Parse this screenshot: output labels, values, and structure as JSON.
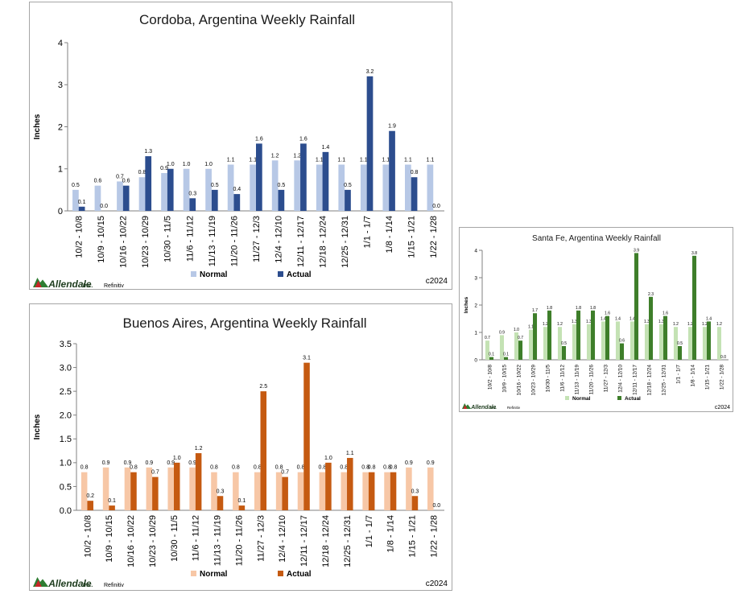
{
  "charts_meta": {
    "brand_name": "Allendale",
    "brand_suffix": "Inc.",
    "source": "Refinitiv",
    "copyright": "c2024"
  },
  "chart_data": [
    {
      "type": "bar",
      "title": "Cordoba, Argentina Weekly Rainfall",
      "xlabel": "",
      "ylabel": "Inches",
      "ylim": [
        0,
        4
      ],
      "yticks": [
        "0",
        "1",
        "2",
        "3",
        "4"
      ],
      "ytick_values": [
        0,
        1,
        2,
        3,
        4
      ],
      "grid": false,
      "legend": "bottom-center",
      "categories": [
        "10/2 - 10/8",
        "10/9 - 10/15",
        "10/16 - 10/22",
        "10/23 - 10/29",
        "10/30 - 11/5",
        "11/6 - 11/12",
        "11/13 - 11/19",
        "11/20 - 11/26",
        "11/27 - 12/3",
        "12/4 - 12/10",
        "12/11 - 12/17",
        "12/18 - 12/24",
        "12/25 - 12/31",
        "1/1 - 1/7",
        "1/8 - 1/14",
        "1/15 - 1/21",
        "1/22 - 1/28"
      ],
      "series": [
        {
          "name": "Normal",
          "color": "#b7c8e6",
          "values": [
            0.5,
            0.6,
            0.7,
            0.8,
            0.9,
            1.0,
            1.0,
            1.1,
            1.1,
            1.2,
            1.2,
            1.1,
            1.1,
            1.1,
            1.1,
            1.1,
            1.1
          ],
          "labels": [
            "0.5",
            "0.6",
            "0.7",
            "0.8",
            "0.9",
            "1.0",
            "1.0",
            "1.1",
            "1.1",
            "1.2",
            "1.2",
            "1.1",
            "1.1",
            "1.1",
            "1.1",
            "1.1",
            "1.1"
          ]
        },
        {
          "name": "Actual",
          "color": "#2c4d8e",
          "values": [
            0.1,
            0.0,
            0.6,
            1.3,
            1.0,
            0.3,
            0.5,
            0.4,
            1.6,
            0.5,
            1.6,
            1.4,
            0.5,
            3.2,
            1.9,
            0.8,
            0.0
          ],
          "labels": [
            "0.1",
            "0.0",
            "0.6",
            "1.3",
            "1.0",
            "0.3",
            "0.5",
            "0.4",
            "1.6",
            "0.5",
            "1.6",
            "1.4",
            "0.5",
            "3.2",
            "1.9",
            "0.8",
            "0.0"
          ]
        }
      ]
    },
    {
      "type": "bar",
      "title": "Santa Fe, Argentina Weekly Rainfall",
      "xlabel": "",
      "ylabel": "Inches",
      "ylim": [
        0,
        4
      ],
      "yticks": [
        "0",
        "1",
        "2",
        "3",
        "4"
      ],
      "ytick_values": [
        0,
        1,
        2,
        3,
        4
      ],
      "grid": false,
      "legend": "bottom-center",
      "categories": [
        "10/2 - 10/8",
        "10/9 - 10/15",
        "10/16 - 10/22",
        "10/23 - 10/29",
        "10/30 - 11/5",
        "11/6 - 11/12",
        "11/13 - 11/19",
        "11/20 - 11/26",
        "11/27 - 12/3",
        "12/4 - 12/10",
        "12/11 - 12/17",
        "12/18 - 12/24",
        "12/25 - 12/31",
        "1/1 - 1/7",
        "1/8 - 1/14",
        "1/15 - 1/21",
        "1/22 - 1/28"
      ],
      "series": [
        {
          "name": "Normal",
          "color": "#c4e2b4",
          "values": [
            0.7,
            0.9,
            1.0,
            1.1,
            1.2,
            1.2,
            1.3,
            1.3,
            1.4,
            1.4,
            1.4,
            1.3,
            1.3,
            1.2,
            1.2,
            1.2,
            1.2
          ],
          "labels": [
            "0.7",
            "0.9",
            "1.0",
            "1.1",
            "1.2",
            "1.2",
            "1.3",
            "1.3",
            "1.4",
            "1.4",
            "1.4",
            "1.3",
            "1.3",
            "1.2",
            "1.2",
            "1.2",
            "1.2"
          ]
        },
        {
          "name": "Actual",
          "color": "#3e7e2a",
          "values": [
            0.1,
            0.1,
            0.7,
            1.7,
            1.8,
            0.5,
            1.8,
            1.8,
            1.6,
            0.6,
            3.9,
            2.3,
            1.6,
            0.5,
            3.8,
            1.4,
            0.0
          ],
          "labels": [
            "0.1",
            "0.1",
            "0.7",
            "1.7",
            "1.8",
            "0.5",
            "1.8",
            "1.8",
            "1.6",
            "0.6",
            "3.9",
            "2.3",
            "1.6",
            "0.5",
            "3.8",
            "1.4",
            "0.0"
          ]
        }
      ]
    },
    {
      "type": "bar",
      "title": "Buenos Aires, Argentina Weekly Rainfall",
      "xlabel": "",
      "ylabel": "Inches",
      "ylim": [
        0,
        3.5
      ],
      "yticks": [
        "0.0",
        "0.5",
        "1.0",
        "1.5",
        "2.0",
        "2.5",
        "3.0",
        "3.5"
      ],
      "ytick_values": [
        0,
        0.5,
        1.0,
        1.5,
        2.0,
        2.5,
        3.0,
        3.5
      ],
      "grid": false,
      "legend": "bottom-center",
      "categories": [
        "10/2 - 10/8",
        "10/9 - 10/15",
        "10/16 - 10/22",
        "10/23 - 10/29",
        "10/30 - 11/5",
        "11/6 - 11/12",
        "11/13 - 11/19",
        "11/20 - 11/26",
        "11/27 - 12/3",
        "12/4 - 12/10",
        "12/11 - 12/17",
        "12/18 - 12/24",
        "12/25 - 12/31",
        "1/1 - 1/7",
        "1/8 - 1/14",
        "1/15 - 1/21",
        "1/22 - 1/28"
      ],
      "series": [
        {
          "name": "Normal",
          "color": "#f7c7a6",
          "values": [
            0.8,
            0.9,
            0.9,
            0.9,
            0.9,
            0.9,
            0.8,
            0.8,
            0.8,
            0.8,
            0.8,
            0.8,
            0.8,
            0.8,
            0.8,
            0.9,
            0.9
          ],
          "labels": [
            "0.8",
            "0.9",
            "0.9",
            "0.9",
            "0.9",
            "0.9",
            "0.8",
            "0.8",
            "0.8",
            "0.8",
            "0.8",
            "0.8",
            "0.8",
            "0.8",
            "0.8",
            "0.9",
            "0.9"
          ]
        },
        {
          "name": "Actual",
          "color": "#c55a11",
          "values": [
            0.2,
            0.1,
            0.8,
            0.7,
            1.0,
            1.2,
            0.3,
            0.1,
            2.5,
            0.7,
            3.1,
            1.0,
            1.1,
            0.8,
            0.8,
            0.3,
            0.0
          ],
          "labels": [
            "0.2",
            "0.1",
            "0.8",
            "0.7",
            "1.0",
            "1.2",
            "0.3",
            "0.1",
            "2.5",
            "0.7",
            "3.1",
            "1.0",
            "1.1",
            "0.8",
            "0.8",
            "0.3",
            "0.0"
          ]
        }
      ]
    }
  ]
}
